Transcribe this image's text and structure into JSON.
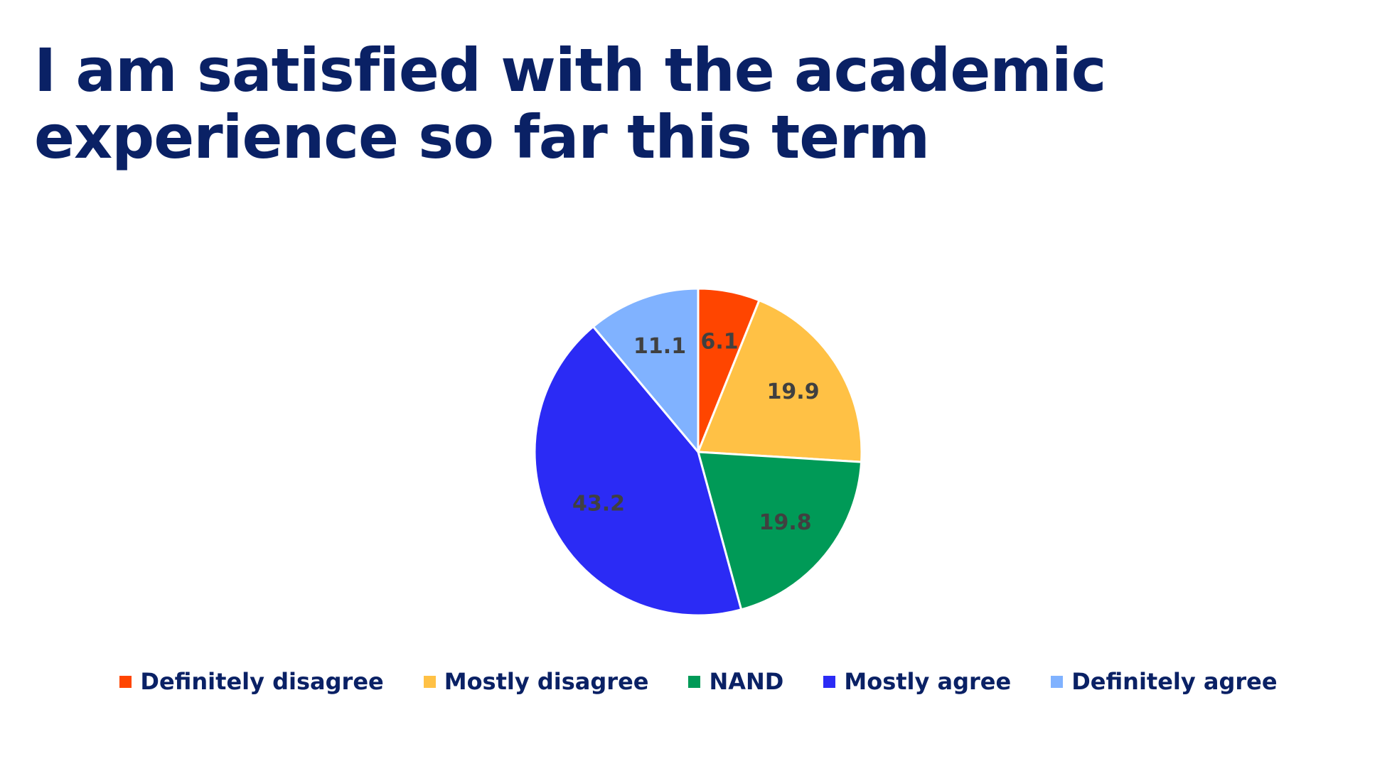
{
  "slide": {
    "title_line1": "I am satisfied with the academic",
    "title_line2": "experience so far this term"
  },
  "chart_data": {
    "type": "pie",
    "title": "I am satisfied with the academic experience so far this term",
    "start_angle_deg": 0,
    "direction": "clockwise",
    "legend_position": "bottom",
    "slices": [
      {
        "label": "Definitely disagree",
        "value": 6.1,
        "value_label": "6.1",
        "color": "#ff4500"
      },
      {
        "label": "Mostly disagree",
        "value": 19.9,
        "value_label": "19.9",
        "color": "#ffc145"
      },
      {
        "label": "NAND",
        "value": 19.8,
        "value_label": "19.8",
        "color": "#009a57"
      },
      {
        "label": "Mostly agree",
        "value": 43.2,
        "value_label": "43.2",
        "color": "#2b2bf5"
      },
      {
        "label": "Definitely agree",
        "value": 11.1,
        "value_label": "11.1",
        "color": "#80b2ff"
      }
    ]
  }
}
